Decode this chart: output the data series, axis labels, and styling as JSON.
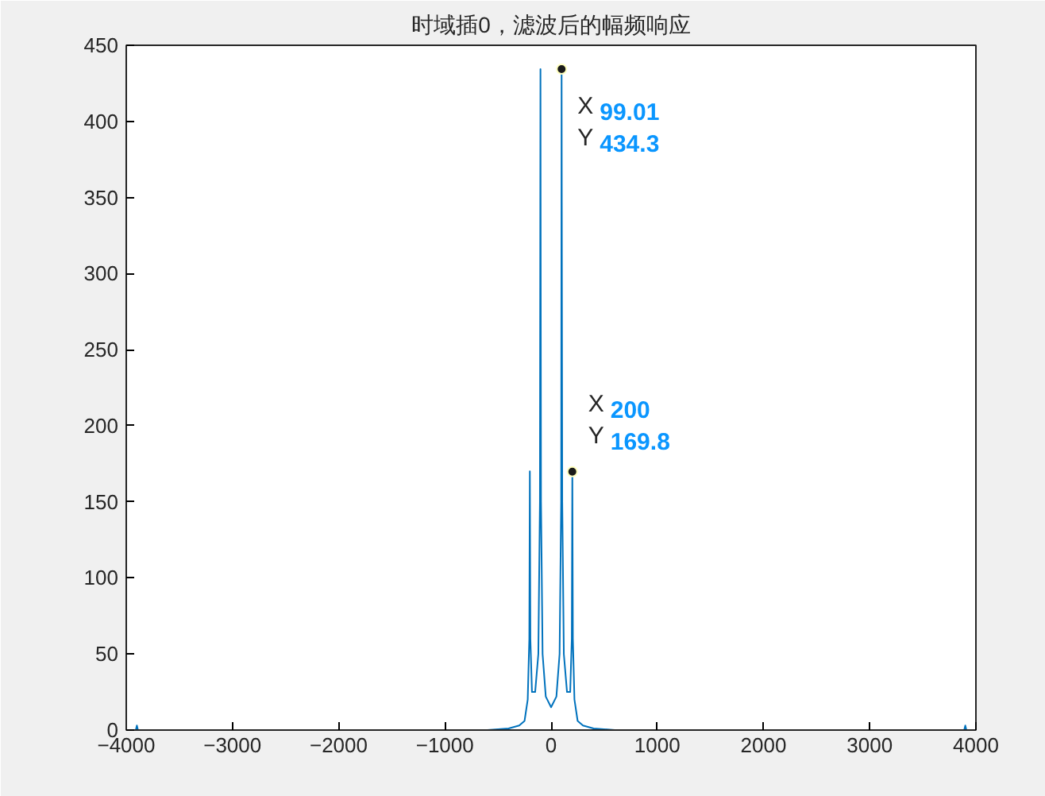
{
  "chart_data": {
    "type": "line",
    "title": "时域插0，滤波后的幅频响应",
    "x": [
      -4000,
      -3910,
      -3900,
      -3890,
      -600,
      -400,
      -300,
      -250,
      -220,
      -205,
      -200,
      -195,
      -180,
      -150,
      -120,
      -105,
      -100,
      -95,
      -80,
      -50,
      0,
      50,
      80,
      95,
      99.01,
      105,
      120,
      150,
      180,
      195,
      200,
      205,
      220,
      250,
      300,
      400,
      600,
      3890,
      3900,
      3910,
      4000
    ],
    "series": [
      {
        "color": "#0072bd",
        "values": [
          0,
          0,
          3,
          0,
          0,
          1,
          3,
          6,
          20,
          60,
          170,
          60,
          25,
          25,
          50,
          150,
          434.3,
          150,
          50,
          22,
          15,
          22,
          50,
          150,
          434.3,
          150,
          50,
          25,
          25,
          60,
          169.8,
          60,
          20,
          6,
          3,
          1,
          0,
          0,
          3,
          0,
          0
        ]
      }
    ],
    "xlim": [
      -4000,
      4000
    ],
    "ylim": [
      0,
      450
    ],
    "xticks": [
      -4000,
      -3000,
      -2000,
      -1000,
      0,
      1000,
      2000,
      3000,
      4000
    ],
    "yticks": [
      0,
      50,
      100,
      150,
      200,
      250,
      300,
      350,
      400,
      450
    ],
    "grid": false,
    "annotations": [
      {
        "text": "X 99.01\nY 434.3",
        "x": 99.01,
        "y": 434.3
      },
      {
        "text": "X 200\nY 169.8",
        "x": 200,
        "y": 169.8
      }
    ]
  }
}
